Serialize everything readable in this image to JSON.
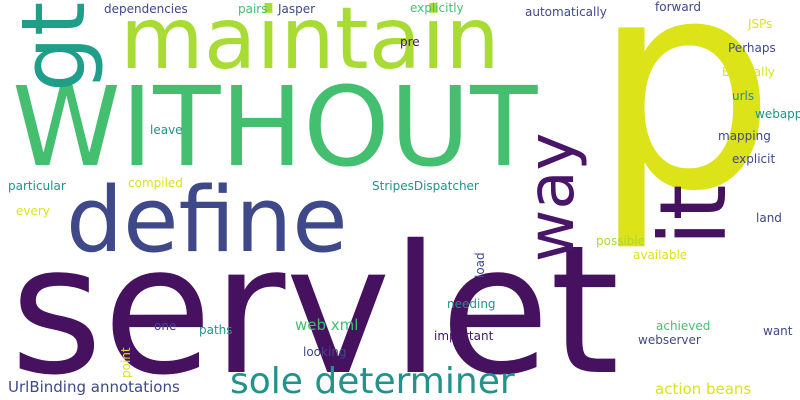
{
  "words": {
    "servlet": "servlet",
    "p": "p",
    "without": "WITHOUT",
    "maintain": "maintain",
    "define": "define",
    "gt": "gt",
    "it": "it",
    "way": "way",
    "sole_determiner": "sole determiner",
    "urlbinding_annotations": "UrlBinding annotations",
    "action_beans": "action beans",
    "web_xml": "web xml",
    "dependencies": "dependencies",
    "pairs": "pairs",
    "jasper": "Jasper",
    "explicitly": "explicitly",
    "automatically": "automatically",
    "forward": "forward",
    "jsps": "JSPs",
    "perhaps": "Perhaps",
    "basically": "Basically",
    "urls": "urls",
    "webapp": "webapp",
    "pre": "pre",
    "leave": "leave",
    "mapping": "mapping",
    "explicit": "explicit",
    "particular": "particular",
    "compiled": "compiled",
    "stripesdispatcher": "StripesDispatcher",
    "every": "every",
    "land": "land",
    "possible": "possible",
    "available": "available",
    "load": "load",
    "needing": "needing",
    "one": "one",
    "paths": "paths",
    "important": "important",
    "achieved": "achieved",
    "want": "want",
    "webserver": "webserver",
    "looking": "looking",
    "point": "point"
  },
  "colors": {
    "dark_purple": "#46115f",
    "deep_purple": "#481568",
    "blue_purple": "#3f4889",
    "teal": "#21928c",
    "teal_dark": "#1f9e89",
    "green": "#44bf70",
    "green_light": "#7ad151",
    "lime": "#a8db34",
    "yellow": "#dce318"
  }
}
